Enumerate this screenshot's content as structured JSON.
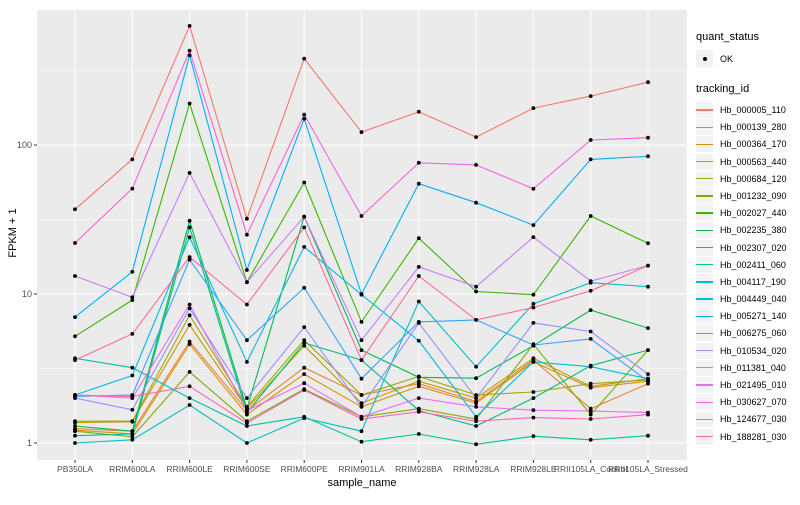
{
  "figure": {
    "background": "#FFFFFF",
    "panel_background": "#EBEBEB",
    "gridline_color": "#FFFFFF",
    "tick_color": "#333333",
    "tick_label_color": "#4D4D4D",
    "point_color": "#000000"
  },
  "legend": {
    "quant_status": {
      "title": "quant_status",
      "items": [
        {
          "label": "OK",
          "marker": "black-point-icon"
        }
      ]
    },
    "tracking_id": {
      "title": "tracking_id"
    }
  },
  "chart_data": {
    "type": "line",
    "title": "",
    "xlabel": "sample_name",
    "ylabel": "FPKM + 1",
    "y_scale": "log10",
    "y_ticks": [
      1,
      10,
      100
    ],
    "y_minor_ticks": [
      3.1623,
      31.623,
      316.23
    ],
    "ylim": [
      0.83,
      810
    ],
    "grid": "on",
    "legend_position": "right",
    "marker": "black point",
    "categories": [
      "PB350LA",
      "RRIM600LA",
      "RRIM600LE",
      "RRIM600SE",
      "RRIM600PE",
      "RRIM901LA",
      "RRIM928BA",
      "RRIM928LA",
      "RRIM928LE",
      "RRII105LA_Control",
      "RRII105LA_Stressed"
    ],
    "series": [
      {
        "name": "Hb_000005_110",
        "color": "#F8766D",
        "values": [
          37,
          80,
          630,
          32,
          380,
          122,
          167,
          113,
          177,
          213,
          264
        ]
      },
      {
        "name": "Hb_000139_280",
        "color": "#EA8331",
        "values": [
          1.25,
          1.2,
          4.8,
          1.65,
          3.2,
          2.1,
          2.5,
          1.9,
          3.6,
          1.7,
          2.5
        ]
      },
      {
        "name": "Hb_000364_170",
        "color": "#D89000",
        "values": [
          1.22,
          1.15,
          4.6,
          1.55,
          2.9,
          1.75,
          2.4,
          1.85,
          3.5,
          2.35,
          2.6
        ]
      },
      {
        "name": "Hb_000563_440",
        "color": "#C09B00",
        "values": [
          1.37,
          1.39,
          6.2,
          1.7,
          4.5,
          1.85,
          2.6,
          2.0,
          3.7,
          2.4,
          2.7
        ]
      },
      {
        "name": "Hb_000684_120",
        "color": "#A3A500",
        "values": [
          1.4,
          1.4,
          7.2,
          1.75,
          4.9,
          2.1,
          2.8,
          2.1,
          2.2,
          2.5,
          2.65
        ]
      },
      {
        "name": "Hb_001232_090",
        "color": "#7CAE00",
        "values": [
          1.2,
          1.1,
          3.0,
          1.4,
          2.3,
          1.5,
          1.7,
          1.45,
          4.6,
          1.55,
          4.2
        ]
      },
      {
        "name": "Hb_002027_440",
        "color": "#39B600",
        "values": [
          5.2,
          9.1,
          190,
          12,
          56,
          6.5,
          23.7,
          10.4,
          9.9,
          33.4,
          21.9
        ]
      },
      {
        "name": "Hb_002235_380",
        "color": "#00BB4E",
        "values": [
          1.3,
          1.2,
          31,
          1.7,
          33,
          4.2,
          2.76,
          2.72,
          4.5,
          7.8,
          5.9
        ]
      },
      {
        "name": "Hb_002307_020",
        "color": "#00BF7D",
        "values": [
          1.12,
          1.15,
          28,
          1.6,
          4.7,
          3.6,
          1.65,
          1.3,
          2.0,
          3.3,
          4.2
        ]
      },
      {
        "name": "Hb_002411_060",
        "color": "#00C1A3",
        "values": [
          3.7,
          3.2,
          2.0,
          1.3,
          1.5,
          1.02,
          1.15,
          0.98,
          1.11,
          1.05,
          1.12
        ]
      },
      {
        "name": "Hb_004117_190",
        "color": "#00BFC4",
        "values": [
          1.0,
          1.05,
          1.8,
          1.0,
          1.47,
          1.2,
          8.9,
          3.25,
          8.6,
          11.9,
          11.2
        ]
      },
      {
        "name": "Hb_004449_040",
        "color": "#00BAE0",
        "values": [
          2.1,
          2.84,
          24,
          3.5,
          20.7,
          9.9,
          4.85,
          1.5,
          3.5,
          3.25,
          2.7
        ]
      },
      {
        "name": "Hb_005271_140",
        "color": "#00B0F6",
        "values": [
          7.0,
          14.1,
          400,
          14.5,
          150,
          10,
          55,
          41,
          29,
          80,
          84
        ]
      },
      {
        "name": "Hb_006275_060",
        "color": "#35A2FF",
        "values": [
          2.05,
          2.1,
          17,
          4.9,
          11,
          2.7,
          6.5,
          6.7,
          4.55,
          5.0,
          2.6
        ]
      },
      {
        "name": "Hb_010534_020",
        "color": "#9590FF",
        "values": [
          2.0,
          1.67,
          8.0,
          2.0,
          6.0,
          1.75,
          6.4,
          2.0,
          6.4,
          5.6,
          2.9
        ]
      },
      {
        "name": "Hb_011381_040",
        "color": "#C77CFF",
        "values": [
          13.2,
          9.5,
          65,
          12,
          33,
          4.9,
          15.2,
          11.2,
          24.1,
          12.2,
          15.5
        ]
      },
      {
        "name": "Hb_021495_010",
        "color": "#E76BF3",
        "values": [
          2.1,
          2.0,
          8.5,
          1.65,
          2.52,
          1.5,
          2.0,
          1.75,
          1.66,
          1.64,
          1.6
        ]
      },
      {
        "name": "Hb_030627_070",
        "color": "#FA62DB",
        "values": [
          22,
          51,
          430,
          25,
          160,
          33.4,
          76,
          73.5,
          50.8,
          108,
          112
        ]
      },
      {
        "name": "Hb_124677_030",
        "color": "#FF62BC",
        "values": [
          2.1,
          2.05,
          2.4,
          1.36,
          2.27,
          1.45,
          1.62,
          1.4,
          1.48,
          1.45,
          1.55
        ]
      },
      {
        "name": "Hb_188281_030",
        "color": "#FF6A98",
        "values": [
          3.6,
          5.4,
          17.7,
          8.5,
          28,
          3.6,
          13.2,
          6.7,
          8.1,
          10.5,
          15.5
        ]
      }
    ]
  }
}
